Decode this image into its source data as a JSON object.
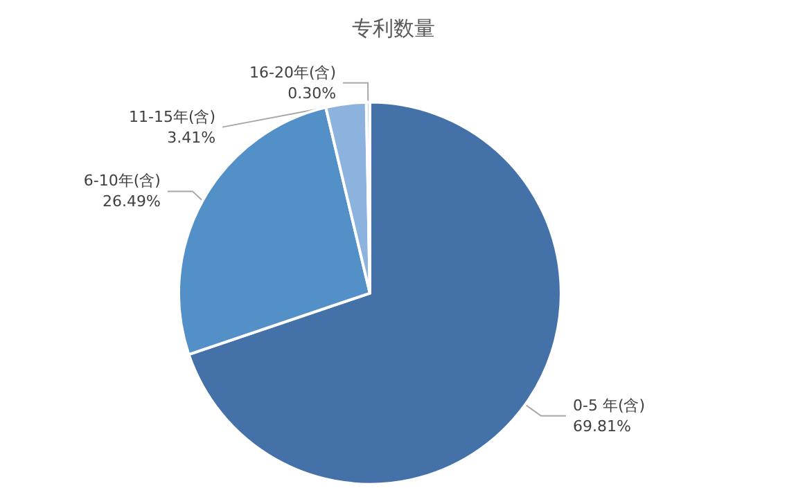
{
  "chart_data": {
    "type": "pie",
    "title": "专利数量",
    "categories": [
      "0-5 年(含)",
      "6-10年(含)",
      "11-15年(含)",
      "16-20年(含)"
    ],
    "values": [
      69.81,
      26.49,
      3.41,
      0.3
    ],
    "value_labels": [
      "69.81%",
      "26.49%",
      "3.41%",
      "0.30%"
    ],
    "colors": [
      "#4472a8",
      "#5490c8",
      "#8cb2de",
      "#c0d3ec"
    ],
    "legend": false
  }
}
